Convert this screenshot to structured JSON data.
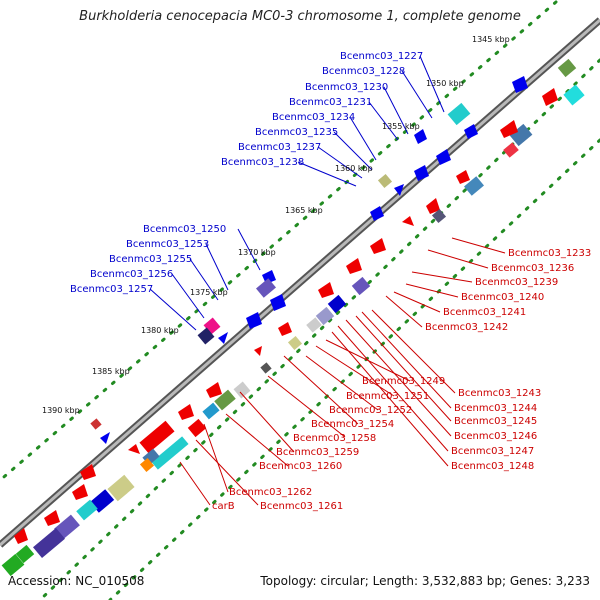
{
  "header": {
    "title": "Burkholderia cenocepacia MC0-3 chromosome 1, complete genome"
  },
  "footer": {
    "accession": "Accession: NC_010508",
    "topology": "Topology: circular; Length: 3,532,883 bp; Genes: 3,233"
  },
  "axis": {
    "ticks": [
      "1345 kbp",
      "1350 kbp",
      "1355 kbp",
      "1360 kbp",
      "1365 kbp",
      "1370 kbp",
      "1375 kbp",
      "1380 kbp",
      "1385 kbp",
      "1390 kbp"
    ]
  },
  "labels": {
    "forward": [
      "Bcenmc03_1227",
      "Bcenmc03_1228",
      "Bcenmc03_1230",
      "Bcenmc03_1231",
      "Bcenmc03_1234",
      "Bcenmc03_1235",
      "Bcenmc03_1237",
      "Bcenmc03_1238",
      "Bcenmc03_1250",
      "Bcenmc03_1253",
      "Bcenmc03_1255",
      "Bcenmc03_1256",
      "Bcenmc03_1257"
    ],
    "reverse_right": [
      "Bcenmc03_1233",
      "Bcenmc03_1236",
      "Bcenmc03_1239",
      "Bcenmc03_1240",
      "Bcenmc03_1241",
      "Bcenmc03_1242",
      "Bcenmc03_1243",
      "Bcenmc03_1244",
      "Bcenmc03_1245",
      "Bcenmc03_1246",
      "Bcenmc03_1247",
      "Bcenmc03_1248"
    ],
    "reverse_lower": [
      "Bcenmc03_1249",
      "Bcenmc03_1251",
      "Bcenmc03_1252",
      "Bcenmc03_1254",
      "Bcenmc03_1258",
      "Bcenmc03_1259",
      "Bcenmc03_1260",
      "Bcenmc03_1262",
      "carB",
      "Bcenmc03_1261"
    ]
  },
  "colors": {
    "forward_label": "#0000cc",
    "reverse_label": "#cc0000",
    "backbone": "#8a8a8a",
    "ticks": "#228b22"
  }
}
